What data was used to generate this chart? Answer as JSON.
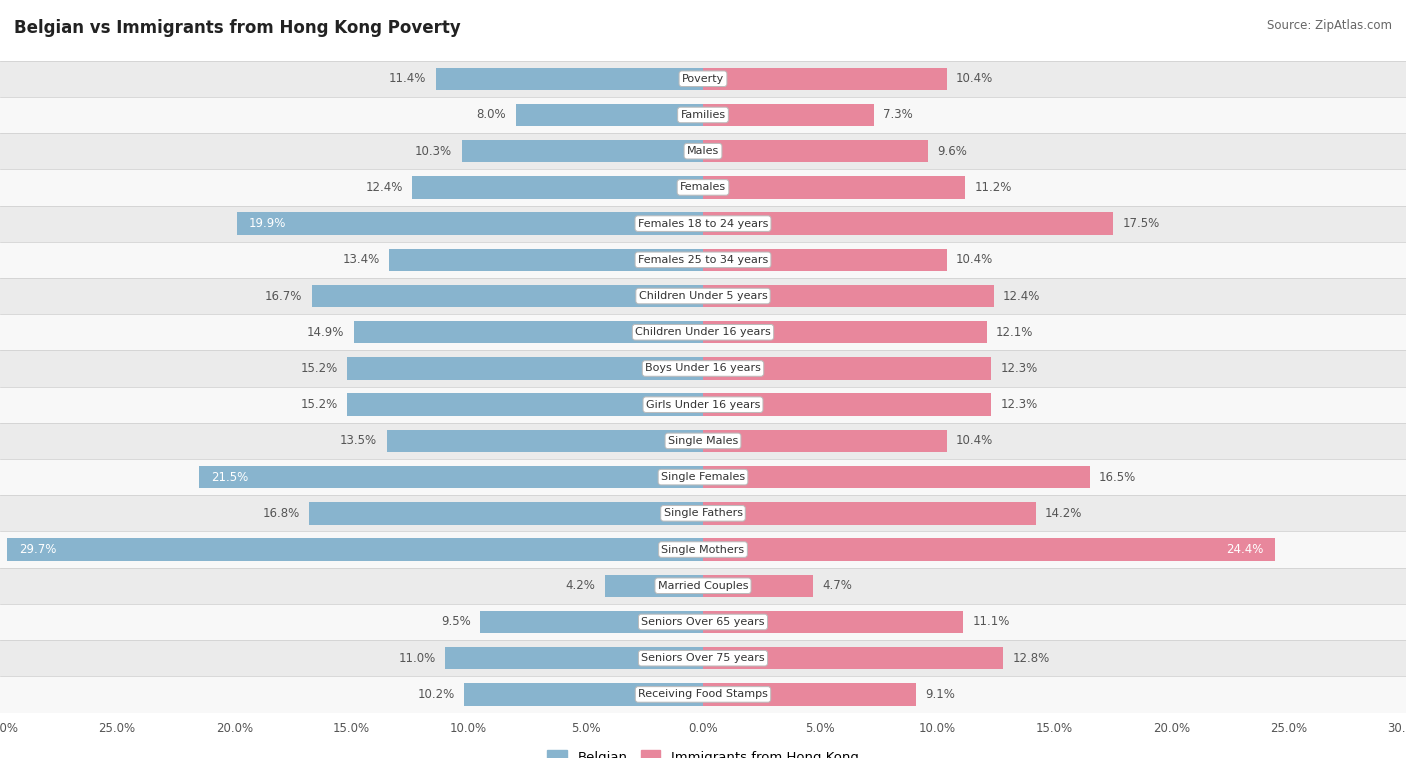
{
  "title": "Belgian vs Immigrants from Hong Kong Poverty",
  "source": "Source: ZipAtlas.com",
  "categories": [
    "Poverty",
    "Families",
    "Males",
    "Females",
    "Females 18 to 24 years",
    "Females 25 to 34 years",
    "Children Under 5 years",
    "Children Under 16 years",
    "Boys Under 16 years",
    "Girls Under 16 years",
    "Single Males",
    "Single Females",
    "Single Fathers",
    "Single Mothers",
    "Married Couples",
    "Seniors Over 65 years",
    "Seniors Over 75 years",
    "Receiving Food Stamps"
  ],
  "belgian": [
    11.4,
    8.0,
    10.3,
    12.4,
    19.9,
    13.4,
    16.7,
    14.9,
    15.2,
    15.2,
    13.5,
    21.5,
    16.8,
    29.7,
    4.2,
    9.5,
    11.0,
    10.2
  ],
  "hk": [
    10.4,
    7.3,
    9.6,
    11.2,
    17.5,
    10.4,
    12.4,
    12.1,
    12.3,
    12.3,
    10.4,
    16.5,
    14.2,
    24.4,
    4.7,
    11.1,
    12.8,
    9.1
  ],
  "belgian_color": "#88B4CE",
  "hk_color": "#E8879C",
  "bar_height": 0.62,
  "xlim": 30.0,
  "bg_row_light": "#ebebeb",
  "bg_row_white": "#f8f8f8",
  "label_color_default": "#555555",
  "label_color_inside": "#ffffff",
  "highlight_threshold_belgian": 18.0,
  "highlight_threshold_hk": 18.0,
  "legend_label_belgian": "Belgian",
  "legend_label_hk": "Immigrants from Hong Kong"
}
